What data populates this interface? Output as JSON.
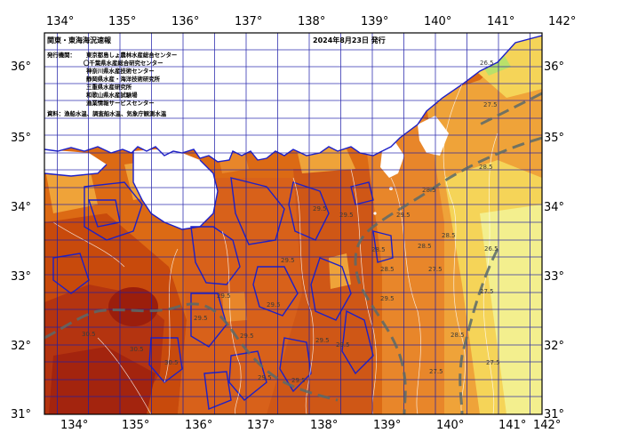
{
  "header": {
    "title": "関東・東海海況速報",
    "date": "2024年8月23日 発行"
  },
  "issuers": {
    "heading": "発行機関：",
    "items": [
      "東京都島しょ農林水産総合センター",
      "〇千葉県水産総合研究センター",
      "神奈川県水産技術センター",
      "静岡県水産・海洋技術研究所",
      "三重県水産研究所",
      "和歌山県水産試験場",
      "漁業情報サービスセンター"
    ]
  },
  "source": "資料：漁船水温、調査船水温、気象庁観測水温",
  "axes": {
    "lon": [
      "134°",
      "135°",
      "136°",
      "137°",
      "138°",
      "139°",
      "140°",
      "141°",
      "142°"
    ],
    "lat": [
      "36°",
      "35°",
      "34°",
      "33°",
      "32°",
      "31°"
    ]
  },
  "isotherms": [
    {
      "label": "26.5",
      "temp": 26.5
    },
    {
      "label": "27.5",
      "temp": 27.5
    },
    {
      "label": "28.5",
      "temp": 28.5
    },
    {
      "label": "28.5",
      "temp": 28.5
    },
    {
      "label": "28.5",
      "temp": 28.5
    },
    {
      "label": "29.5",
      "temp": 29.5
    },
    {
      "label": "29.5",
      "temp": 29.5
    },
    {
      "label": "29.5",
      "temp": 29.5
    },
    {
      "label": "29.5",
      "temp": 29.5
    },
    {
      "label": "29.5",
      "temp": 29.5
    },
    {
      "label": "29.5",
      "temp": 29.5
    },
    {
      "label": "29.5",
      "temp": 29.5
    },
    {
      "label": "29.5",
      "temp": 29.5
    },
    {
      "label": "29.5",
      "temp": 29.5
    },
    {
      "label": "29.5",
      "temp": 29.5
    },
    {
      "label": "28.5",
      "temp": 28.5
    },
    {
      "label": "27.5",
      "temp": 27.5
    },
    {
      "label": "27.5",
      "temp": 27.5
    },
    {
      "label": "27.5",
      "temp": 27.5
    },
    {
      "label": "28.5",
      "temp": 28.5
    },
    {
      "label": "29.5",
      "temp": 29.5
    },
    {
      "label": "28.5",
      "temp": 28.5
    },
    {
      "label": "27.5",
      "temp": 27.5
    },
    {
      "label": "26.5",
      "temp": 26.5
    },
    {
      "label": "30.5",
      "temp": 30.5
    },
    {
      "label": "30.5",
      "temp": 30.5
    },
    {
      "label": "30.5",
      "temp": 30.5
    },
    {
      "label": "29.5",
      "temp": 29.5
    },
    {
      "label": "29.5",
      "temp": 29.5
    },
    {
      "label": "28.5",
      "temp": 28.5
    }
  ],
  "colors": {
    "deep_red": "#9b1e0c",
    "dark_orange": "#c84a0c",
    "orange": "#dc6a14",
    "light_orange": "#e8862a",
    "amber": "#efa339",
    "yellow": "#f5d458",
    "pale_yellow": "#f3ef8e",
    "lime": "#b9e16a",
    "land": "#ffffff",
    "coast_blue": "#1d20c8",
    "grid": "#1c1ca8",
    "current": "#5a6a6a"
  }
}
